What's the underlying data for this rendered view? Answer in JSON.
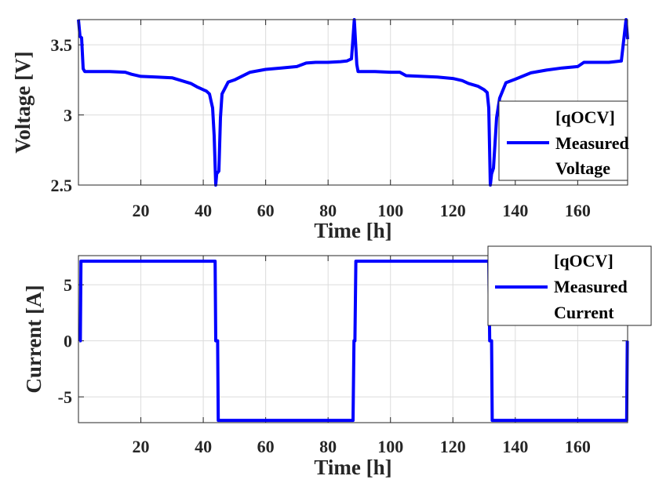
{
  "chart_data": [
    {
      "type": "line",
      "xlabel": "Time [h]",
      "ylabel": "Voltage [V]",
      "xlim": [
        0,
        176
      ],
      "ylim": [
        2.5,
        3.68
      ],
      "xticks": [
        20,
        40,
        60,
        80,
        100,
        120,
        140,
        160
      ],
      "yticks": [
        2.5,
        3,
        3.5
      ],
      "ytick_labels": [
        "2.5",
        "3",
        "3.5"
      ],
      "grid": true,
      "legend_position": "right",
      "series": [
        {
          "name": "[qOCV] Measured Voltage",
          "color": "#0000FF",
          "x": [
            0,
            0.5,
            1,
            1.5,
            2,
            5,
            10,
            15,
            17,
            20,
            25,
            30,
            33,
            36,
            38,
            40,
            41,
            42,
            43,
            43.5,
            44,
            44.3,
            45,
            45.5,
            46,
            48,
            50,
            55,
            60,
            65,
            70,
            73,
            76,
            80,
            84,
            86,
            87.5,
            88,
            88.4,
            88.8,
            89.2,
            89.6,
            90,
            95,
            100,
            103,
            105,
            110,
            115,
            120,
            123,
            125,
            128,
            130,
            131,
            131.5,
            132,
            132.4,
            133,
            134,
            135,
            137,
            140,
            145,
            150,
            155,
            160,
            162,
            165,
            170,
            174,
            175.5,
            176
          ],
          "y": [
            3.68,
            3.56,
            3.55,
            3.33,
            3.31,
            3.31,
            3.31,
            3.305,
            3.29,
            3.275,
            3.27,
            3.265,
            3.245,
            3.225,
            3.2,
            3.18,
            3.17,
            3.15,
            3.05,
            2.85,
            2.5,
            2.58,
            2.6,
            2.98,
            3.15,
            3.235,
            3.25,
            3.305,
            3.325,
            3.335,
            3.345,
            3.37,
            3.375,
            3.375,
            3.38,
            3.385,
            3.4,
            3.55,
            3.68,
            3.52,
            3.36,
            3.31,
            3.31,
            3.31,
            3.305,
            3.305,
            3.28,
            3.275,
            3.27,
            3.26,
            3.245,
            3.225,
            3.205,
            3.18,
            3.16,
            3.05,
            2.5,
            2.58,
            2.62,
            2.98,
            3.12,
            3.23,
            3.255,
            3.3,
            3.32,
            3.335,
            3.345,
            3.375,
            3.375,
            3.375,
            3.385,
            3.68,
            3.54
          ]
        }
      ]
    },
    {
      "type": "line",
      "xlabel": "Time [h]",
      "ylabel": "Current [A]",
      "xlim": [
        0,
        176
      ],
      "ylim": [
        -7.3,
        7.6
      ],
      "xticks": [
        20,
        40,
        60,
        80,
        100,
        120,
        140,
        160
      ],
      "yticks": [
        -5,
        0,
        5
      ],
      "ytick_labels": [
        "-5",
        "0",
        "5"
      ],
      "grid": true,
      "legend_position": "top-right",
      "series": [
        {
          "name": "[qOCV] Measured Current",
          "color": "#0000FF",
          "x": [
            0.3,
            0.6,
            0.8,
            1.0,
            43.8,
            44.0,
            44.6,
            44.8,
            88.0,
            88.3,
            88.6,
            88.9,
            131.5,
            131.8,
            132.4,
            132.6,
            175.7,
            175.9
          ],
          "y": [
            0,
            0,
            7.1,
            7.1,
            7.1,
            0,
            0,
            -7.1,
            -7.1,
            0,
            0,
            7.1,
            7.1,
            0,
            0,
            -7.1,
            -7.1,
            0
          ]
        }
      ]
    }
  ]
}
